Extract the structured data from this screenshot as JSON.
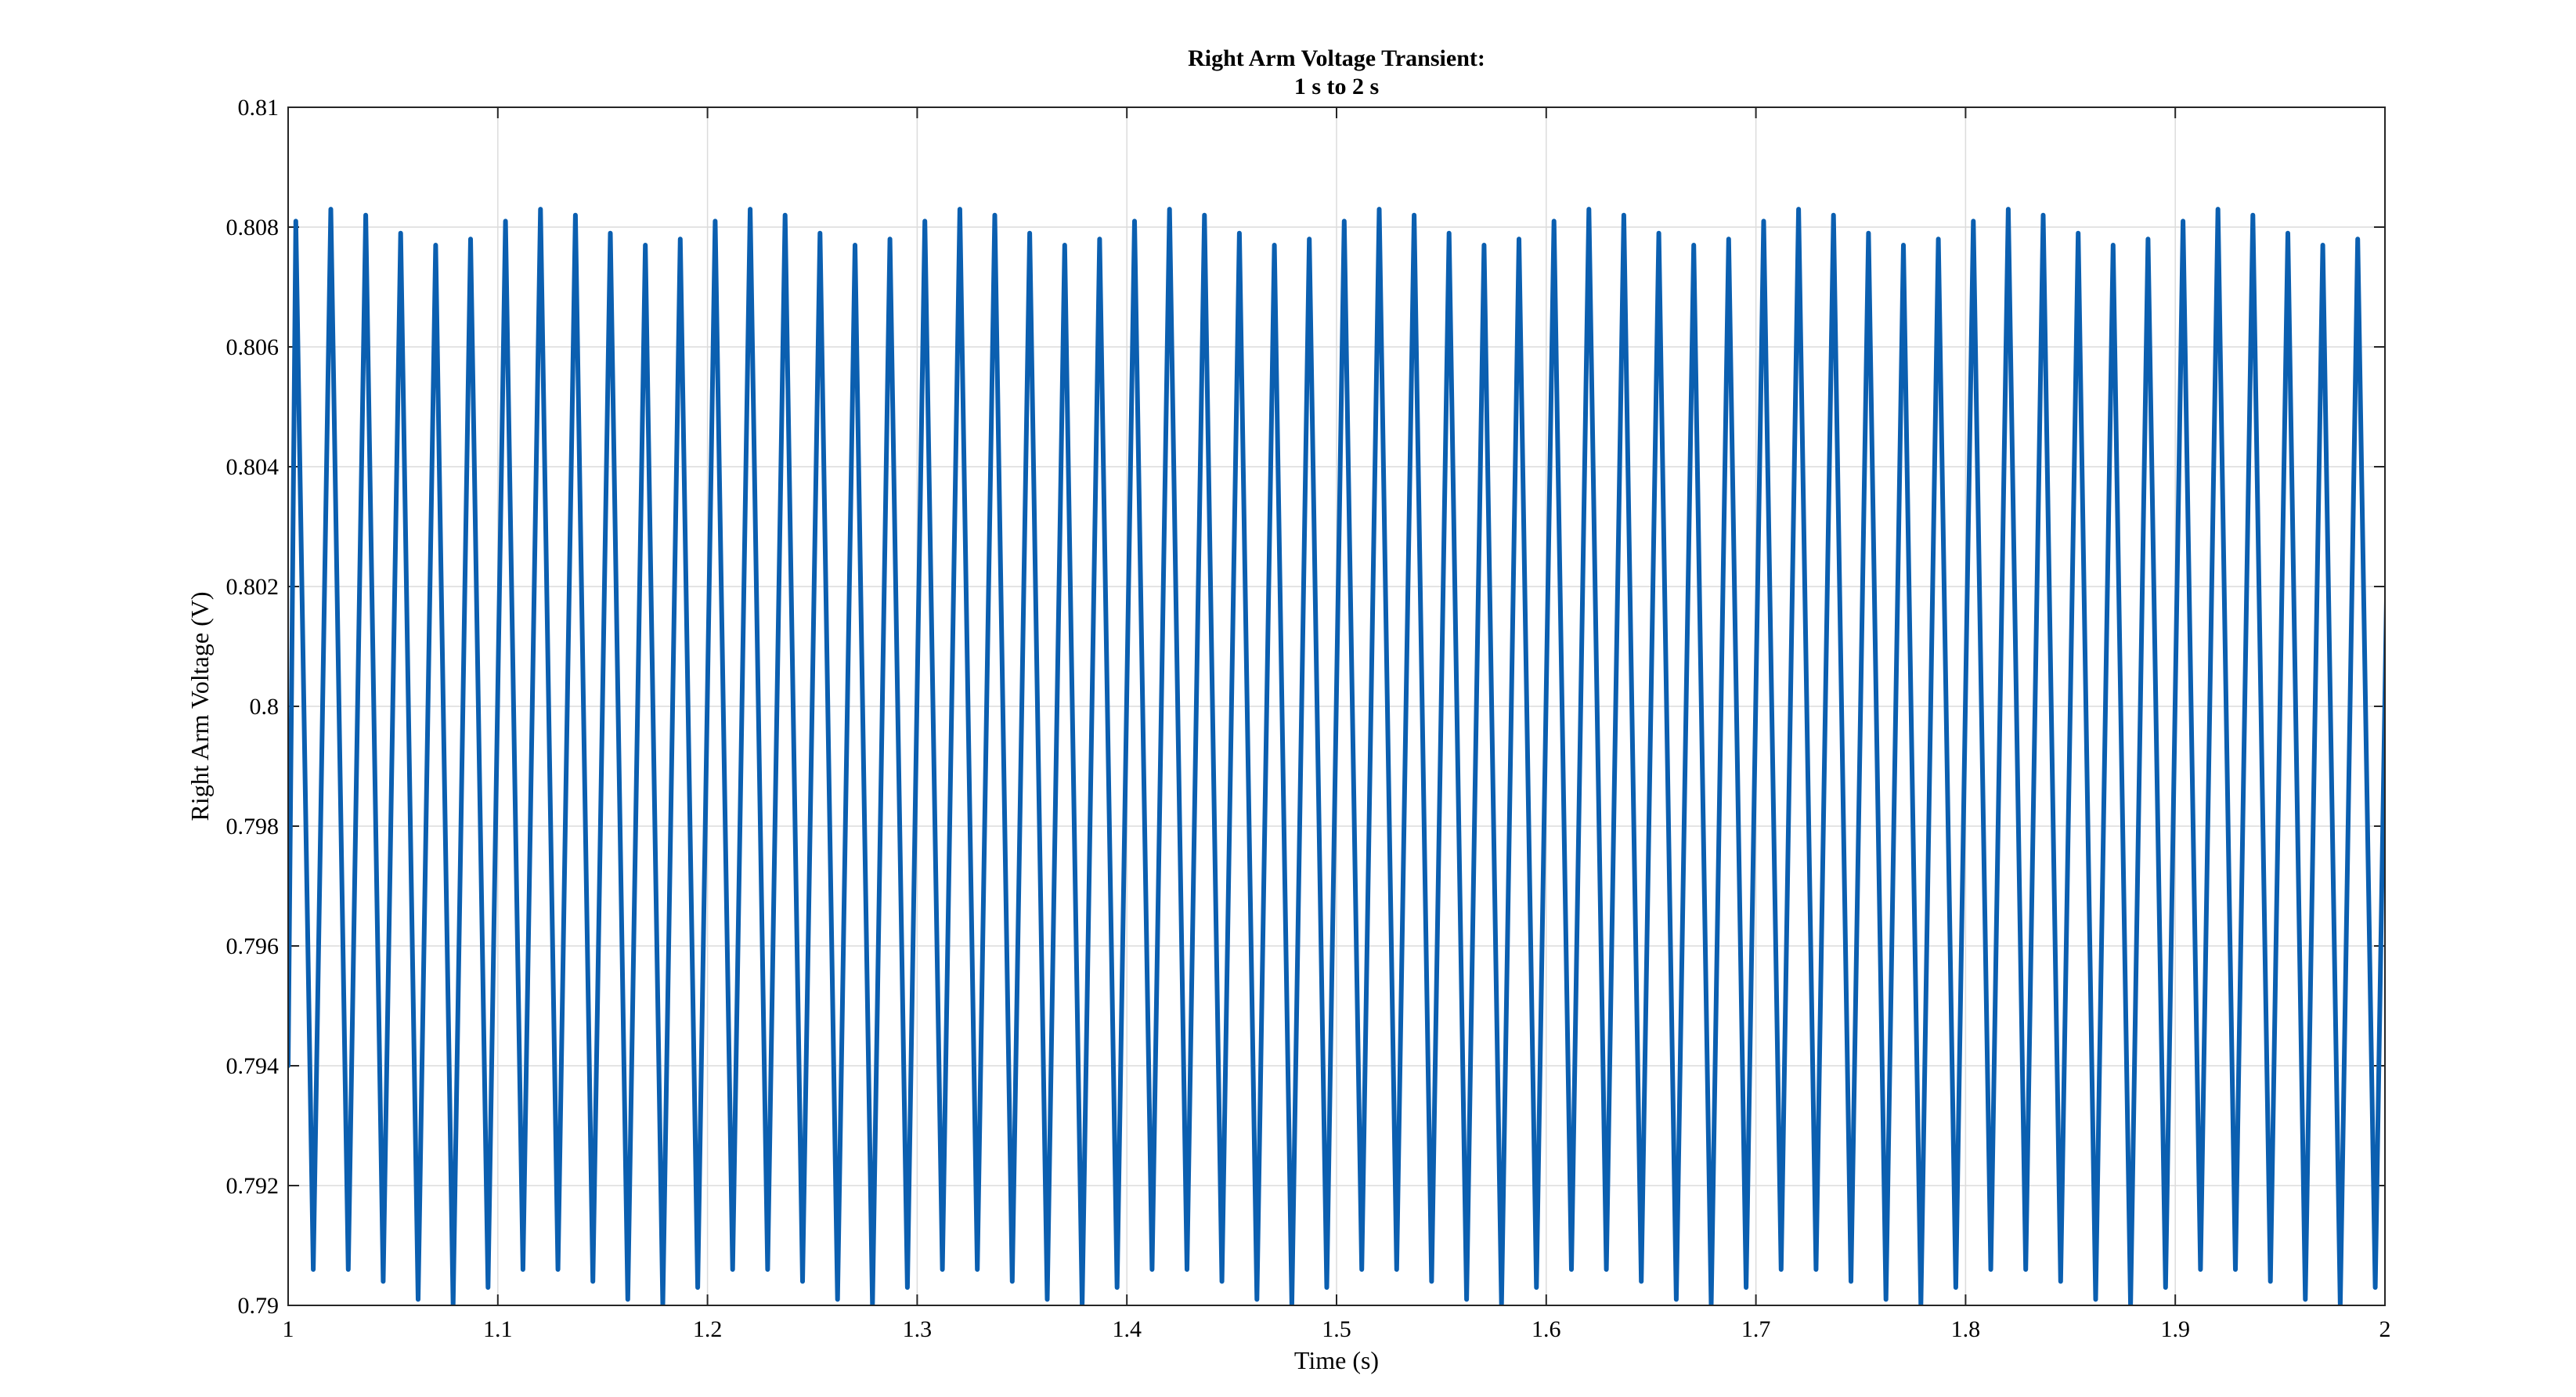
{
  "chart_data": {
    "type": "line",
    "title": [
      "Right Arm Voltage Transient:",
      "1 s to 2 s"
    ],
    "xlabel": "Time (s)",
    "ylabel": "Right Arm Voltage (V)",
    "xlim": [
      1,
      2
    ],
    "ylim": [
      0.79,
      0.81
    ],
    "x_ticks": [
      1,
      1.1,
      1.2,
      1.3,
      1.4,
      1.5,
      1.6,
      1.7,
      1.8,
      1.9,
      2
    ],
    "x_tick_labels": [
      "1",
      "1.1",
      "1.2",
      "1.3",
      "1.4",
      "1.5",
      "1.6",
      "1.7",
      "1.8",
      "1.9",
      "2"
    ],
    "y_ticks": [
      0.79,
      0.792,
      0.794,
      0.796,
      0.798,
      0.8,
      0.802,
      0.804,
      0.806,
      0.808,
      0.81
    ],
    "y_tick_labels": [
      "0.79",
      "0.792",
      "0.794",
      "0.796",
      "0.798",
      "0.8",
      "0.802",
      "0.804",
      "0.806",
      "0.808",
      "0.81"
    ],
    "grid": true,
    "box": true,
    "series": [
      {
        "color": "#0b5fb0",
        "x_start": 1.0,
        "cycle_period": 0.016667,
        "peaks": [
          0.8081,
          0.8083,
          0.8082,
          0.8079,
          0.8077,
          0.8078,
          0.8081,
          0.8083,
          0.8082,
          0.8079,
          0.8077,
          0.8078
        ],
        "troughs": [
          0.7906,
          0.7906,
          0.7904,
          0.7901,
          0.79,
          0.7903,
          0.7906,
          0.7906,
          0.7904,
          0.7901,
          0.79,
          0.7903
        ]
      }
    ]
  }
}
